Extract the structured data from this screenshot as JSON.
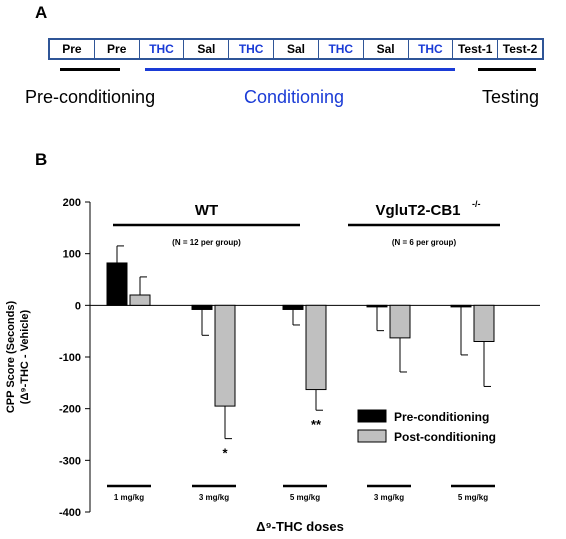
{
  "panel_a": {
    "label": "A",
    "timeline": [
      {
        "text": "Pre",
        "kind": "pre"
      },
      {
        "text": "Pre",
        "kind": "pre"
      },
      {
        "text": "THC",
        "kind": "thc"
      },
      {
        "text": "Sal",
        "kind": "sal"
      },
      {
        "text": "THC",
        "kind": "thc"
      },
      {
        "text": "Sal",
        "kind": "sal"
      },
      {
        "text": "THC",
        "kind": "thc"
      },
      {
        "text": "Sal",
        "kind": "sal"
      },
      {
        "text": "THC",
        "kind": "thc"
      },
      {
        "text": "Test-1",
        "kind": "test"
      },
      {
        "text": "Test-2",
        "kind": "test"
      }
    ],
    "phases": {
      "pre": "Pre-conditioning",
      "cond": "Conditioning",
      "test": "Testing"
    },
    "colors": {
      "border": "#2f5597",
      "thc": "#1a3bd6",
      "conditioning": "#1a3bd6"
    }
  },
  "panel_b": {
    "label": "B"
  },
  "chart_data": {
    "type": "bar",
    "ylabel_line1": "CPP Score (Seconds)",
    "ylabel_line2": "(Δ⁹-THC - Vehicle)",
    "xlabel": "Δ⁹-THC doses",
    "ylim": [
      -400,
      200
    ],
    "yticks": [
      200,
      100,
      0,
      -100,
      -200,
      -300,
      -400
    ],
    "groups": [
      {
        "name": "WT",
        "note": "(N = 12 per group)"
      },
      {
        "name": "VgluT2-CB1-/-",
        "note": "(N = 6 per group)"
      }
    ],
    "categories": [
      "1 mg/kg",
      "3 mg/kg",
      "5 mg/kg",
      "3 mg/kg",
      "5 mg/kg"
    ],
    "series": [
      {
        "name": "Pre-conditioning",
        "color": "#000000",
        "values": [
          82,
          -8,
          -8,
          -3,
          -3
        ],
        "errors": [
          33,
          50,
          30,
          46,
          93
        ]
      },
      {
        "name": "Post-conditioning",
        "color": "#c0c0c0",
        "values": [
          20,
          -195,
          -163,
          -63,
          -70
        ],
        "errors": [
          35,
          63,
          40,
          66,
          87
        ]
      }
    ],
    "significance": [
      "",
      "*",
      "**",
      "",
      ""
    ],
    "legend_position": "bottom-right"
  }
}
